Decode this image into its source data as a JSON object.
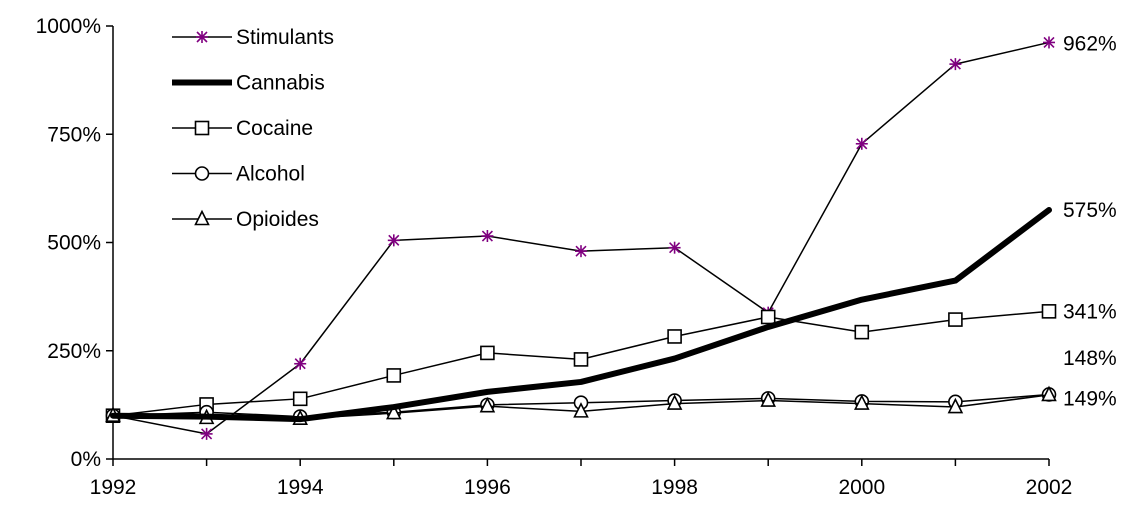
{
  "chart_data": {
    "type": "line",
    "title": "",
    "xlabel": "",
    "ylabel": "",
    "x": [
      1992,
      1993,
      1994,
      1995,
      1996,
      1997,
      1998,
      1999,
      2000,
      2001,
      2002
    ],
    "x_ticks": [
      "1992",
      "1994",
      "1996",
      "1998",
      "2000",
      "2002"
    ],
    "y_ticks": [
      "0%",
      "250%",
      "500%",
      "750%",
      "1000%"
    ],
    "ylim": [
      0,
      1000
    ],
    "grid": false,
    "legend_position": "top-left",
    "series": [
      {
        "name": "Stimulants",
        "marker": "star",
        "color": "#800080",
        "width": 1.5,
        "values": [
          100,
          58,
          220,
          505,
          515,
          480,
          488,
          338,
          728,
          912,
          962
        ]
      },
      {
        "name": "Cannabis",
        "marker": "none",
        "color": "#000000",
        "width": 6,
        "values": [
          100,
          98,
          92,
          120,
          155,
          178,
          232,
          305,
          368,
          412,
          575
        ]
      },
      {
        "name": "Cocaine",
        "marker": "square",
        "color": "#000000",
        "width": 1.5,
        "values": [
          100,
          126,
          139,
          193,
          245,
          230,
          283,
          328,
          293,
          322,
          341
        ]
      },
      {
        "name": "Alcohol",
        "marker": "circle",
        "color": "#000000",
        "width": 1.5,
        "values": [
          100,
          108,
          98,
          108,
          125,
          130,
          135,
          140,
          133,
          132,
          149
        ]
      },
      {
        "name": "Opioides",
        "marker": "triangle",
        "color": "#000000",
        "width": 1.5,
        "values": [
          100,
          95,
          93,
          106,
          122,
          110,
          128,
          135,
          128,
          120,
          148
        ]
      }
    ],
    "end_labels": [
      {
        "text": "962%",
        "value": 962,
        "series": "Stimulants"
      },
      {
        "text": "575%",
        "value": 575,
        "series": "Cannabis"
      },
      {
        "text": "341%",
        "value": 341,
        "series": "Cocaine"
      },
      {
        "text": "148%",
        "value": 148,
        "series": "Opioides"
      },
      {
        "text": "149%",
        "value": 149,
        "series": "Alcohol"
      }
    ]
  }
}
